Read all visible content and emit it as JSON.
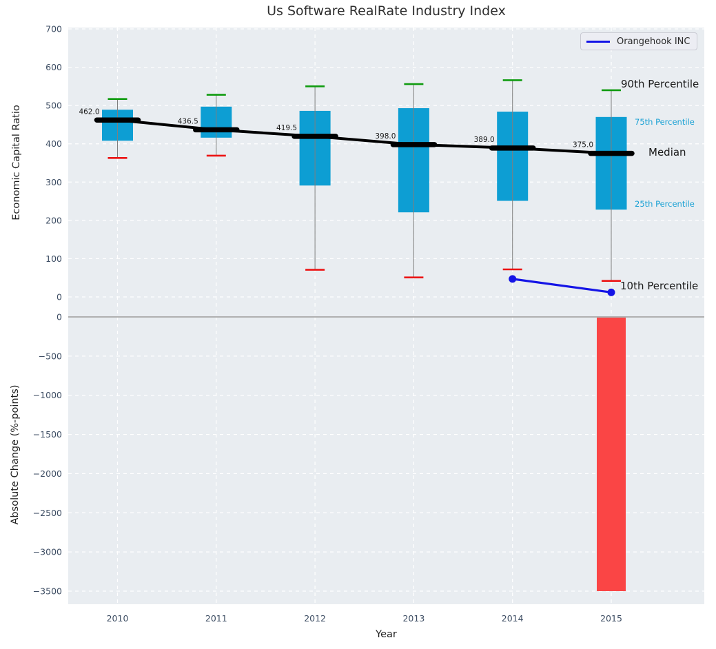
{
  "chart_data": {
    "type": "boxplot+bar",
    "title": "Us Software RealRate Industry Index",
    "xlabel": "Year",
    "categories": [
      2010,
      2011,
      2012,
      2013,
      2014,
      2015
    ],
    "top": {
      "ylabel": "Economic Capital Ratio",
      "ylim": [
        0,
        700
      ],
      "yticks": [
        0,
        100,
        200,
        300,
        400,
        500,
        600,
        700
      ],
      "grid": "white dashed",
      "boxplot": {
        "p90": [
          517,
          528,
          550,
          556,
          566,
          540
        ],
        "q3": [
          489,
          497,
          486,
          493,
          484,
          470
        ],
        "median": [
          462.0,
          436.5,
          419.5,
          398.0,
          389.0,
          375.0
        ],
        "q1": [
          408,
          416,
          291,
          221,
          251,
          228
        ],
        "p10": [
          363,
          369,
          71,
          51,
          72,
          42
        ]
      },
      "median_labels": [
        "462.0",
        "436.5",
        "419.5",
        "398.0",
        "389.0",
        "375.0"
      ]
    },
    "bottom": {
      "ylabel": "Absolute Change (%-points)",
      "ylim": [
        -3500,
        0
      ],
      "yticks": [
        0,
        -500,
        -1000,
        -1500,
        -2000,
        -2500,
        -3000,
        -3500
      ],
      "bars": [
        {
          "year": 2015,
          "value": -3500
        }
      ]
    },
    "series": [
      {
        "name": "Orangehook INC",
        "type": "line",
        "x": [
          2014,
          2015
        ],
        "y": [
          47,
          12
        ]
      }
    ],
    "legend_position": "upper right",
    "annotations": [
      {
        "text": "90th Percentile",
        "color": "#1a1a1a",
        "size": 15,
        "x": 901,
        "y": 122
      },
      {
        "text": "75th Percentile",
        "color": "#16a0d4",
        "size": 11.5,
        "x": 921,
        "y": 177
      },
      {
        "text": "Median",
        "color": "#1a1a1a",
        "size": 15,
        "x": 941,
        "y": 221
      },
      {
        "text": "25th Percentile",
        "color": "#16a0d4",
        "size": 11.5,
        "x": 921,
        "y": 296
      },
      {
        "text": "10th Percentile",
        "color": "#1a1a1a",
        "size": 15,
        "x": 900,
        "y": 415
      }
    ],
    "colors": {
      "box_fill": "#0d9ed3",
      "whisker": "#7f7f7f",
      "p90_cap": "#0f9b0f",
      "p10_cap": "#ec1313",
      "median": "#000000",
      "orangehook": "#1414e6",
      "bar_negative": "#fa4545",
      "plot_bg": "#e9edf1",
      "grid": "#ffffff",
      "tick_label": "#3d4d63",
      "zero_line": "#b0b0b0"
    }
  }
}
